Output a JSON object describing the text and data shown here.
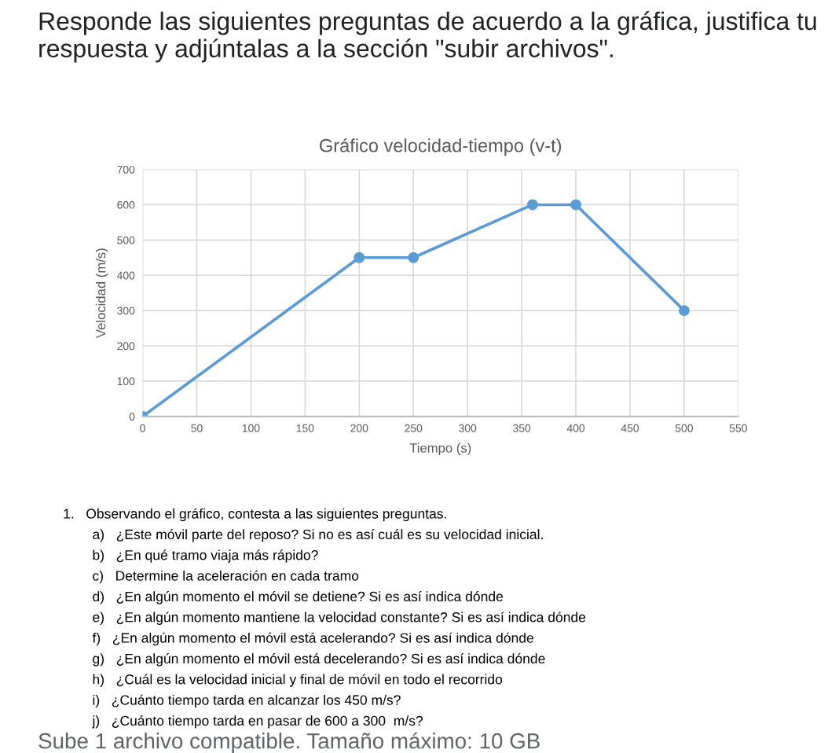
{
  "chart_data": {
    "type": "line",
    "title": "Gráfico velocidad-tiempo (v-t)",
    "xlabel": "Tiempo (s)",
    "ylabel": "Velocidad (m/s)",
    "x": [
      0,
      200,
      250,
      360,
      400,
      500
    ],
    "series": [
      {
        "color": "#5b9bd5",
        "values": [
          0,
          450,
          450,
          600,
          600,
          300
        ]
      }
    ],
    "xlim": [
      0,
      550
    ],
    "xticks": [
      0,
      50,
      100,
      150,
      200,
      250,
      300,
      350,
      400,
      450,
      500,
      550
    ],
    "ylim": [
      0,
      700
    ],
    "yticks": [
      0,
      100,
      200,
      300,
      400,
      500,
      600,
      700
    ],
    "grid": true,
    "marker": "circle",
    "line_style": "solid",
    "legend": false,
    "annotations": [
      "Responde las siguientes preguntas de acuerdo a la gráfica, justifica tu respuesta y adjúntalas a la sección \"subir archivos\".",
      "1.   Observando el gráfico, contesta a las siguientes preguntas.",
      "a)   ¿Este móvil parte del reposo? Si no es así cuál es su velocidad inicial.",
      "b)   ¿En qué tramo viaja más rápido?",
      "c)   Determine la aceleración en cada tramo",
      "d)   ¿En algún momento el móvil se detiene? Si es así indica dónde",
      "e)   ¿En algún momento mantiene la velocidad constante? Si es así indica dónde",
      "f)   ¿En algún momento el móvil está acelerando? Si es así indica dónde",
      "g)   ¿En algún momento el móvil está decelerando? Si es así indica dónde",
      "h)   ¿Cuál es la velocidad inicial y final de móvil en todo el recorrido",
      "i)   ¿Cuánto tiempo tarda en alcanzar los 450 m/s?",
      "j)   ¿Cuánto tiempo tarda en pasar de 600 a 300  m/s?",
      "Sube 1 archivo compatible. Tamaño máximo: 10 GB"
    ]
  }
}
